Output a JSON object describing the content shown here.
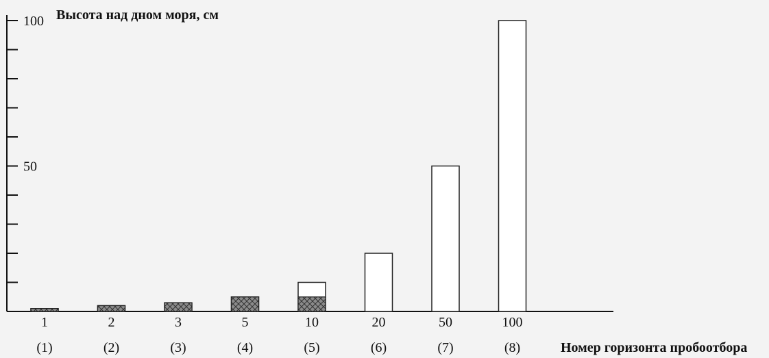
{
  "chart_data": {
    "type": "bar",
    "title": "Высота над дном моря, см",
    "xlabel": "Номер горизонта пробоотбора",
    "ylabel": "",
    "ylim": [
      0,
      100
    ],
    "y_tick_labels": [
      "50",
      "100"
    ],
    "y_tick_step": 10,
    "categories": [
      "1",
      "2",
      "3",
      "5",
      "10",
      "20",
      "50",
      "100"
    ],
    "category_numbers": [
      "(1)",
      "(2)",
      "(3)",
      "(4)",
      "(5)",
      "(6)",
      "(7)",
      "(8)"
    ],
    "series": [
      {
        "name": "",
        "values": [
          1,
          2,
          3,
          5,
          10,
          20,
          50,
          100
        ]
      },
      {
        "name": "",
        "values": [
          1,
          2,
          3,
          5,
          5,
          0,
          0,
          0
        ]
      }
    ],
    "grid": false,
    "colors": {
      "background": "#f3f3f3",
      "axis": "#111111",
      "bar_stroke": "#222222",
      "bar_fill": "#ffffff",
      "hatch_fill": "#8b8b8b",
      "hatch_line": "#333333"
    }
  }
}
